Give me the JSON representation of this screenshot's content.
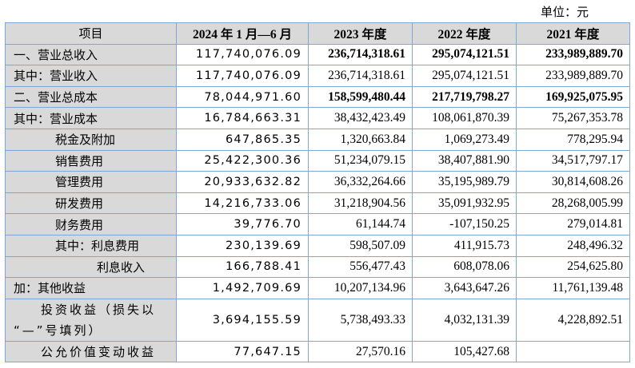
{
  "unit_label": "单位：元",
  "headers": [
    "项目",
    "2024 年 1 月—6 月",
    "2023 年度",
    "2022 年度",
    "2021 年度"
  ],
  "rows": [
    {
      "label": "一、营业总收入",
      "values": [
        "117,740,076.09",
        "236,714,318.61",
        "295,074,121.51",
        "233,989,889.70"
      ],
      "bold": true
    },
    {
      "label": "其中：营业收入",
      "values": [
        "117,740,076.09",
        "236,714,318.61",
        "295,074,121.51",
        "233,989,889.70"
      ]
    },
    {
      "label": "二、营业总成本",
      "values": [
        "78,044,971.60",
        "158,599,480.44",
        "217,719,798.27",
        "169,925,075.95"
      ],
      "bold": true
    },
    {
      "label": "其中：营业成本",
      "values": [
        "16,784,663.31",
        "38,432,423.49",
        "108,061,870.39",
        "75,267,353.78"
      ]
    },
    {
      "label": "税金及附加",
      "values": [
        "647,865.35",
        "1,320,663.84",
        "1,069,273.49",
        "778,295.94"
      ]
    },
    {
      "label": "销售费用",
      "values": [
        "25,422,300.36",
        "51,234,079.15",
        "38,407,881.90",
        "34,517,797.17"
      ]
    },
    {
      "label": "管理费用",
      "values": [
        "20,933,632.82",
        "36,332,264.66",
        "35,195,989.79",
        "30,814,608.26"
      ]
    },
    {
      "label": "研发费用",
      "values": [
        "14,216,733.06",
        "31,218,904.56",
        "35,091,932.95",
        "28,268,005.99"
      ]
    },
    {
      "label": "财务费用",
      "values": [
        "39,776.70",
        "61,144.74",
        "-107,150.25",
        "279,014.81"
      ]
    },
    {
      "label": "其中：利息费用",
      "values": [
        "230,139.69",
        "598,507.09",
        "411,915.73",
        "248,496.32"
      ]
    },
    {
      "label": "利息收入",
      "values": [
        "166,788.41",
        "556,477.43",
        "608,078.06",
        "254,625.80"
      ]
    },
    {
      "label": "加：其他收益",
      "values": [
        "1,492,709.69",
        "10,207,134.96",
        "3,643,647.26",
        "11,761,139.48"
      ]
    },
    {
      "label": "投资收益（损失以",
      "label_line2": "“—”号填列）",
      "values": [
        "3,694,155.59",
        "5,738,493.33",
        "4,032,131.39",
        "4,228,892.51"
      ]
    },
    {
      "label": "公允价值变动收益",
      "values": [
        "77,647.15",
        "27,570.16",
        "105,427.68",
        ""
      ]
    }
  ]
}
